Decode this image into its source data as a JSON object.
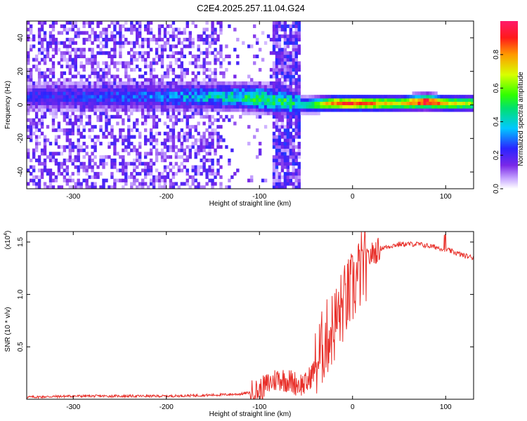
{
  "title": "C2E4.2025.257.11.04.G24",
  "chart_data": [
    {
      "type": "heatmap",
      "xlabel": "Height of straight line (km)",
      "ylabel": "Frequency (Hz)",
      "xlim": [
        -350,
        130
      ],
      "ylim": [
        -50,
        50
      ],
      "x_ticks": [
        -300,
        -200,
        -100,
        0,
        100
      ],
      "y_ticks": [
        -40,
        -20,
        0,
        20,
        40
      ],
      "colorbar": {
        "label": "Normalized spectral amplitude",
        "range": [
          0,
          1
        ],
        "ticks": [
          "0.0",
          "0.2",
          "0.4",
          "0.6",
          "0.8"
        ]
      },
      "ridge": [
        {
          "x": -350,
          "freq": 5,
          "amp": 0.22
        },
        {
          "x": -300,
          "freq": 5,
          "amp": 0.24
        },
        {
          "x": -250,
          "freq": 5,
          "amp": 0.26
        },
        {
          "x": -200,
          "freq": 5,
          "amp": 0.3
        },
        {
          "x": -150,
          "freq": 5,
          "amp": 0.38
        },
        {
          "x": -120,
          "freq": 5,
          "amp": 0.45
        },
        {
          "x": -100,
          "freq": 4,
          "amp": 0.5
        },
        {
          "x": -50,
          "freq": 0,
          "amp": 0.45
        },
        {
          "x": -20,
          "freq": 1,
          "amp": 0.85
        },
        {
          "x": 0,
          "freq": 1,
          "amp": 0.9
        },
        {
          "x": 50,
          "freq": 1,
          "amp": 0.7
        },
        {
          "x": 80,
          "freq": 2,
          "amp": 1.0
        },
        {
          "x": 100,
          "freq": 1,
          "amp": 0.75
        },
        {
          "x": 130,
          "freq": 1,
          "amp": 0.65
        }
      ]
    },
    {
      "type": "line",
      "xlabel": "Height of straight line (km)",
      "ylabel": "SNR (10 * v/v)",
      "y_scale_label": "(x10",
      "y_scale_exp": "4",
      "xlim": [
        -350,
        130
      ],
      "ylim": [
        0,
        1.6
      ],
      "x_ticks": [
        -300,
        -200,
        -100,
        0,
        100
      ],
      "y_ticks": [
        "0.5",
        "1.0",
        "1.5"
      ],
      "series": [
        {
          "color": "#e8302a",
          "points": [
            [
              -350,
              0.02
            ],
            [
              -300,
              0.03
            ],
            [
              -250,
              0.03
            ],
            [
              -200,
              0.03
            ],
            [
              -150,
              0.04
            ],
            [
              -120,
              0.05
            ],
            [
              -100,
              0.08
            ],
            [
              -90,
              0.15
            ],
            [
              -80,
              0.2
            ],
            [
              -70,
              0.18
            ],
            [
              -60,
              0.15
            ],
            [
              -50,
              0.14
            ],
            [
              -40,
              0.3
            ],
            [
              -30,
              0.55
            ],
            [
              -20,
              0.7
            ],
            [
              -10,
              0.9
            ],
            [
              0,
              1.05
            ],
            [
              10,
              1.25
            ],
            [
              20,
              1.38
            ],
            [
              30,
              1.44
            ],
            [
              50,
              1.48
            ],
            [
              70,
              1.48
            ],
            [
              90,
              1.45
            ],
            [
              100,
              1.43
            ],
            [
              110,
              1.4
            ],
            [
              120,
              1.37
            ],
            [
              130,
              1.35
            ]
          ]
        }
      ]
    }
  ]
}
